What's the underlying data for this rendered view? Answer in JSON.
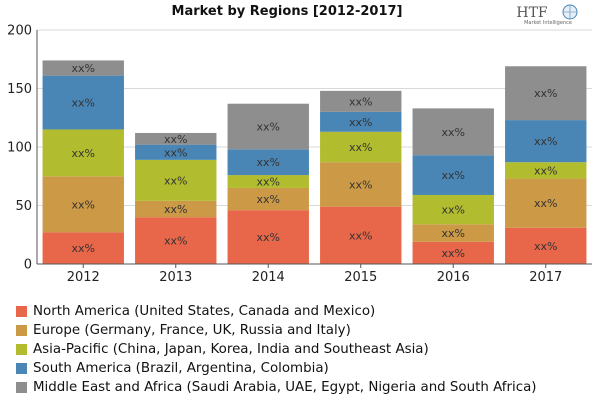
{
  "chart_data": {
    "type": "bar",
    "stacked": true,
    "title": "Market by Regions [2012-2017]",
    "categories": [
      "2012",
      "2013",
      "2014",
      "2015",
      "2016",
      "2017"
    ],
    "series": [
      {
        "name": "North America (United States, Canada and Mexico)",
        "color": "#e8674a",
        "values": [
          27,
          40,
          46,
          49,
          19,
          31
        ],
        "labels": [
          "xx%",
          "xx%",
          "xx%",
          "xx%",
          "xx%",
          "xx%"
        ]
      },
      {
        "name": "Europe (Germany, France, UK, Russia and Italy)",
        "color": "#cc9a46",
        "values": [
          48,
          14,
          19,
          38,
          15,
          42
        ],
        "labels": [
          "xx%",
          "xx%",
          "xx%",
          "xx%",
          "xx%",
          "xx%"
        ]
      },
      {
        "name": "Asia-Pacific (China, Japan, Korea, India and Southeast Asia)",
        "color": "#b1bd2f",
        "values": [
          40,
          35,
          11,
          26,
          25,
          14
        ],
        "labels": [
          "xx%",
          "xx%",
          "xx%",
          "xx%",
          "xx%",
          "xx%"
        ]
      },
      {
        "name": "South America (Brazil, Argentina, Colombia)",
        "color": "#4a86b5",
        "values": [
          46,
          13,
          22,
          17,
          34,
          36
        ],
        "labels": [
          "xx%",
          "xx%",
          "xx%",
          "xx%",
          "xx%",
          "xx%"
        ]
      },
      {
        "name": "Middle East and Africa (Saudi Arabia, UAE, Egypt, Nigeria and South Africa)",
        "color": "#8e8e8e",
        "values": [
          13,
          10,
          39,
          18,
          40,
          46
        ],
        "labels": [
          "xx%",
          "xx%",
          "xx%",
          "xx%",
          "xx%",
          "xx%"
        ]
      }
    ],
    "ylim": [
      0,
      200
    ],
    "yticks": [
      "0",
      "50",
      "100",
      "150",
      "200"
    ],
    "xlabel": "",
    "ylabel": "",
    "grid": true,
    "legend_position": "bottom"
  },
  "logo": {
    "brand": "HTF",
    "tagline": "Market Intelligence"
  }
}
